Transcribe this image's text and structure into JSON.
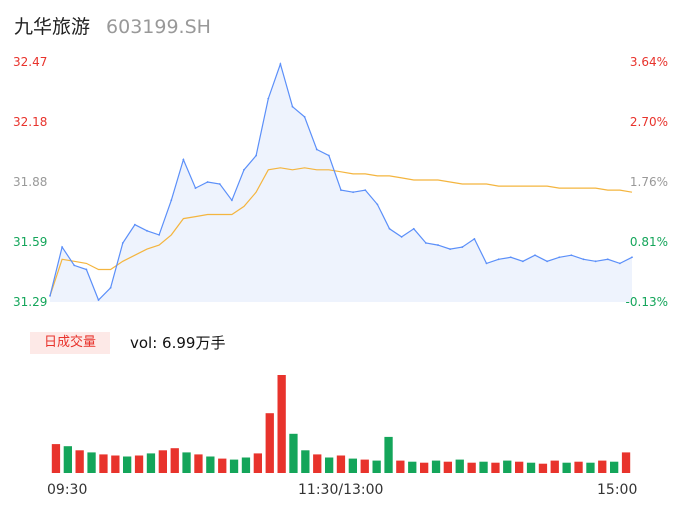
{
  "header": {
    "name": "九华旅游",
    "code": "603199.SH"
  },
  "price_axis": {
    "labels": [
      "32.47",
      "32.18",
      "31.88",
      "31.59",
      "31.29"
    ],
    "label_colors": [
      "up",
      "up",
      "flat",
      "down",
      "down"
    ]
  },
  "pct_axis": {
    "labels": [
      "3.64%",
      "2.70%",
      "1.76%",
      "0.81%",
      "-0.13%"
    ],
    "label_colors": [
      "up",
      "up",
      "flat",
      "down",
      "down"
    ]
  },
  "volume": {
    "tag": "日成交量",
    "text": "vol: 6.99万手"
  },
  "time_axis": {
    "labels": [
      "09:30",
      "11:30/13:00",
      "15:00"
    ]
  },
  "colors": {
    "price_line": "#5b8ff9",
    "avg_line": "#f4b53f",
    "up": "#e8332c",
    "down": "#14a55a",
    "flat": "#999999"
  },
  "chart_data": {
    "type": "line",
    "x": [
      "09:30",
      "09:35",
      "09:40",
      "09:45",
      "09:50",
      "09:55",
      "10:00",
      "10:05",
      "10:10",
      "10:15",
      "10:20",
      "10:25",
      "10:30",
      "10:35",
      "10:40",
      "10:45",
      "10:50",
      "10:55",
      "11:00",
      "11:05",
      "11:10",
      "11:15",
      "11:20",
      "11:25",
      "11:30",
      "13:05",
      "13:10",
      "13:15",
      "13:20",
      "13:25",
      "13:30",
      "13:35",
      "13:40",
      "13:45",
      "13:50",
      "13:55",
      "14:00",
      "14:05",
      "14:10",
      "14:15",
      "14:20",
      "14:25",
      "14:30",
      "14:35",
      "14:40",
      "14:45",
      "14:50",
      "14:55",
      "15:00"
    ],
    "series": [
      {
        "values": [
          31.32,
          31.56,
          31.47,
          31.45,
          31.3,
          31.36,
          31.58,
          31.67,
          31.64,
          31.62,
          31.79,
          31.99,
          31.85,
          31.88,
          31.87,
          31.79,
          31.94,
          32.01,
          32.29,
          32.46,
          32.25,
          32.2,
          32.04,
          32.01,
          31.84,
          31.83,
          31.84,
          31.77,
          31.65,
          31.61,
          31.65,
          31.58,
          31.57,
          31.55,
          31.56,
          31.6,
          31.48,
          31.5,
          31.51,
          31.49,
          31.52,
          31.49,
          31.51,
          31.52,
          31.5,
          31.49,
          31.5,
          31.48,
          31.51
        ]
      },
      {
        "values": [
          31.32,
          31.5,
          31.49,
          31.48,
          31.45,
          31.45,
          31.49,
          31.52,
          31.55,
          31.57,
          31.62,
          31.7,
          31.71,
          31.72,
          31.72,
          31.72,
          31.76,
          31.83,
          31.94,
          31.95,
          31.94,
          31.95,
          31.94,
          31.94,
          31.93,
          31.92,
          31.92,
          31.91,
          31.91,
          31.9,
          31.89,
          31.89,
          31.89,
          31.88,
          31.87,
          31.87,
          31.87,
          31.86,
          31.86,
          31.86,
          31.86,
          31.86,
          31.85,
          31.85,
          31.85,
          31.85,
          31.84,
          31.84,
          31.83
        ]
      }
    ],
    "y_labels": [
      "32.47",
      "32.18",
      "31.88",
      "31.59",
      "31.29"
    ],
    "ylim": [
      31.29,
      32.47
    ],
    "y2_labels": [
      "3.64%",
      "2.70%",
      "1.76%",
      "0.81%",
      "-0.13%"
    ],
    "volume": [
      28,
      26,
      22,
      20,
      18,
      17,
      16,
      17,
      19,
      22,
      24,
      20,
      18,
      16,
      14,
      13,
      15,
      19,
      58,
      95,
      38,
      22,
      18,
      15,
      17,
      14,
      13,
      12,
      35,
      12,
      11,
      10,
      12,
      11,
      13,
      10,
      11,
      10,
      12,
      11,
      10,
      9,
      12,
      10,
      11,
      10,
      12,
      11,
      20
    ],
    "volume_up": [
      true,
      false,
      true,
      false,
      true,
      true,
      false,
      true,
      false,
      true,
      true,
      false,
      true,
      false,
      true,
      false,
      false,
      true,
      true,
      true,
      false,
      false,
      true,
      false,
      true,
      false,
      true,
      false,
      false,
      true,
      false,
      true,
      false,
      true,
      false,
      true,
      false,
      true,
      false,
      true,
      false,
      true,
      true,
      false,
      true,
      false,
      true,
      false,
      true
    ],
    "grid": false
  }
}
